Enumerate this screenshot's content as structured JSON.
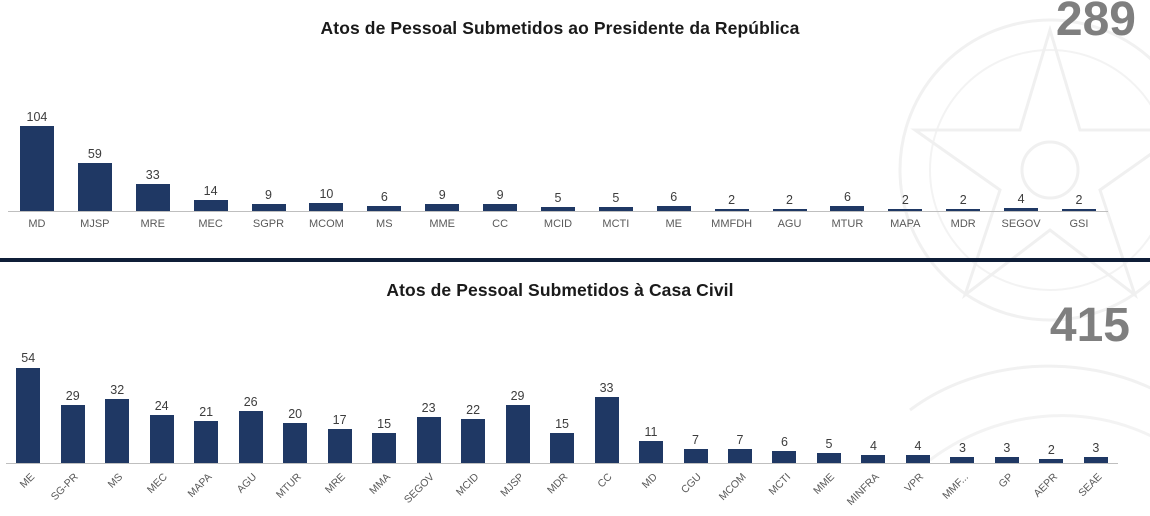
{
  "chart_data": [
    {
      "type": "bar",
      "title": "Atos de Pessoal Submetidos ao Presidente da República",
      "total": "289",
      "categories": [
        "MD",
        "MJSP",
        "MRE",
        "MEC",
        "SGPR",
        "MCOM",
        "MS",
        "MME",
        "CC",
        "MCID",
        "MCTI",
        "ME",
        "MMFDH",
        "AGU",
        "MTUR",
        "MAPA",
        "MDR",
        "SEGOV",
        "GSI"
      ],
      "values": [
        104,
        59,
        33,
        14,
        9,
        10,
        6,
        9,
        9,
        5,
        5,
        6,
        2,
        2,
        6,
        2,
        2,
        4,
        2
      ],
      "bar_color": "#1f3864",
      "xlabel": "",
      "ylabel": "",
      "ylim": [
        0,
        110
      ],
      "grid": false,
      "legend": false,
      "label_rotation": 0,
      "value_labels": true
    },
    {
      "type": "bar",
      "title": "Atos de Pessoal Submetidos à Casa Civil",
      "total": "415",
      "categories": [
        "ME",
        "SG-PR",
        "MS",
        "MEC",
        "MAPA",
        "AGU",
        "MTUR",
        "MRE",
        "MMA",
        "SEGOV",
        "MCID",
        "MJSP",
        "MDR",
        "CC",
        "MD",
        "CGU",
        "MCOM",
        "MCTI",
        "MME",
        "MINFRA",
        "VPR",
        "MMF...",
        "GP",
        "AEPR",
        "SEAE"
      ],
      "values": [
        54,
        29,
        32,
        24,
        21,
        26,
        20,
        17,
        15,
        23,
        22,
        29,
        15,
        33,
        11,
        7,
        7,
        6,
        5,
        4,
        4,
        3,
        3,
        2,
        3
      ],
      "bar_color": "#1f3864",
      "xlabel": "",
      "ylabel": "",
      "ylim": [
        0,
        56
      ],
      "grid": false,
      "legend": false,
      "label_rotation": -45,
      "value_labels": true
    }
  ],
  "divider_color": "#0f1e38",
  "colors": {
    "bar": "#1f3864",
    "total_text": "#7f7f7f",
    "axis_line": "#bfbfbf",
    "axis_label": "#595959",
    "value_label": "#3d3d3d"
  }
}
